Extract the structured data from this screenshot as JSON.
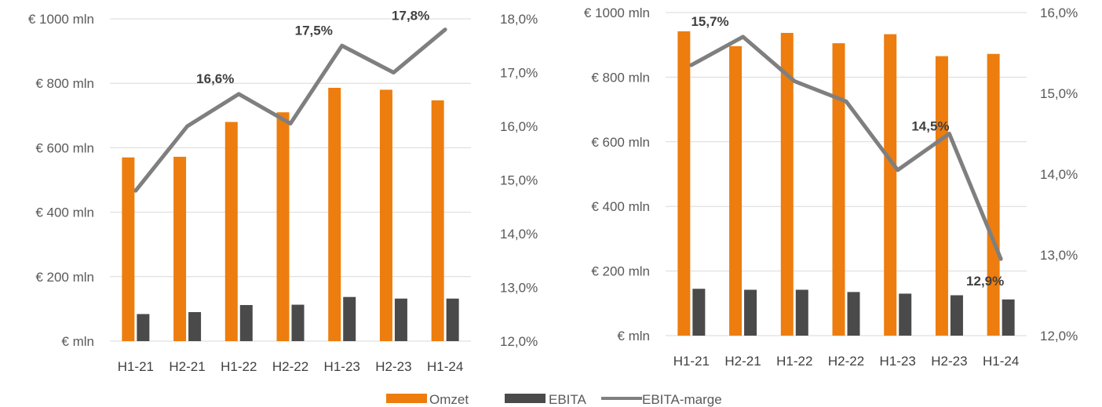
{
  "colors": {
    "omzet": "#ed7d0e",
    "ebita": "#4a4a4a",
    "marge": "#7f7f7f",
    "grid": "#d9d9d9"
  },
  "legend": {
    "omzet": "Omzet",
    "ebita": "EBITA",
    "marge": "EBITA-marge"
  },
  "chart_data": [
    {
      "type": "bar",
      "categories": [
        "H1-21",
        "H2-21",
        "H1-22",
        "H2-22",
        "H1-23",
        "H2-23",
        "H1-24"
      ],
      "series": [
        {
          "name": "Omzet",
          "values": [
            570,
            572,
            680,
            710,
            786,
            780,
            747
          ]
        },
        {
          "name": "EBITA",
          "values": [
            84,
            90,
            112,
            113,
            137,
            132,
            132
          ]
        },
        {
          "name": "EBITA-marge",
          "type": "line",
          "axis": "right",
          "values": [
            14.8,
            16.0,
            16.6,
            16.05,
            17.5,
            17.0,
            17.8
          ]
        }
      ],
      "ylim": [
        0,
        1000
      ],
      "yticks": [
        "€ mln",
        "€ 200 mln",
        "€ 400 mln",
        "€ 600 mln",
        "€ 800 mln",
        "€ 1000 mln"
      ],
      "y2lim": [
        12,
        18
      ],
      "y2ticks": [
        "12,0%",
        "13,0%",
        "14,0%",
        "15,0%",
        "16,0%",
        "17,0%",
        "18,0%"
      ],
      "data_labels": [
        {
          "index": 2,
          "text": "16,6%"
        },
        {
          "index": 4,
          "text": "17,5%"
        },
        {
          "index": 6,
          "text": "17,8%"
        }
      ],
      "grid": true
    },
    {
      "type": "bar",
      "categories": [
        "H1-21",
        "H2-21",
        "H1-22",
        "H2-22",
        "H1-23",
        "H2-23",
        "H1-24"
      ],
      "series": [
        {
          "name": "Omzet",
          "values": [
            942,
            896,
            937,
            905,
            933,
            865,
            872
          ]
        },
        {
          "name": "EBITA",
          "values": [
            145,
            142,
            142,
            135,
            130,
            125,
            112
          ]
        },
        {
          "name": "EBITA-marge",
          "type": "line",
          "axis": "right",
          "values": [
            15.35,
            15.7,
            15.15,
            14.9,
            14.05,
            14.5,
            12.95
          ]
        }
      ],
      "ylim": [
        0,
        1000
      ],
      "yticks": [
        "€ mln",
        "€ 200 mln",
        "€ 400 mln",
        "€ 600 mln",
        "€ 800 mln",
        "€ 1000 mln"
      ],
      "y2lim": [
        12,
        16
      ],
      "y2ticks": [
        "12,0%",
        "13,0%",
        "14,0%",
        "15,0%",
        "16,0%"
      ],
      "data_labels": [
        {
          "index": 1,
          "text": "15,7%"
        },
        {
          "index": 5,
          "text": "14,5%"
        },
        {
          "index": 6,
          "text": "12,9%"
        }
      ],
      "grid": true
    }
  ]
}
